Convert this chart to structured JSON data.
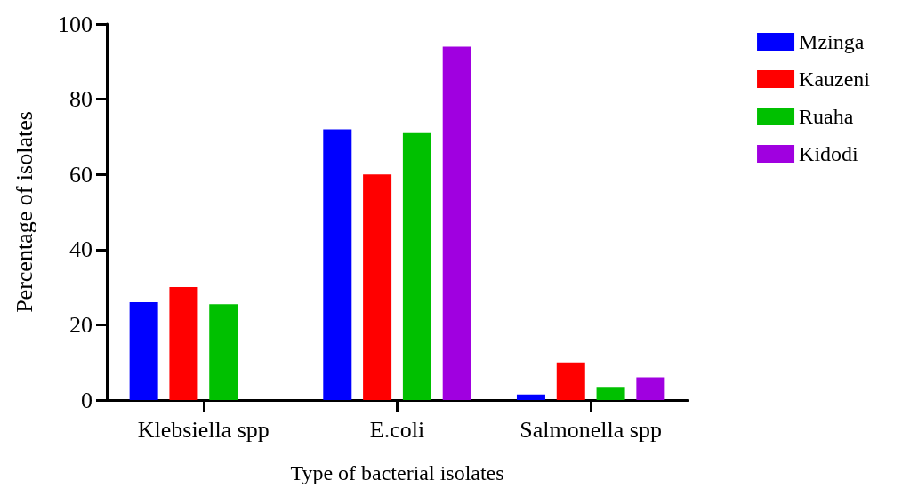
{
  "chart_data": {
    "type": "bar",
    "xlabel": "Type of bacterial isolates",
    "ylabel": "Percentage of isolates",
    "categories": [
      "Klebsiella spp",
      "E.coli",
      "Salmonella spp"
    ],
    "series": [
      {
        "name": "Mzinga",
        "color": "#0000ff",
        "values": [
          26,
          72,
          1.5
        ]
      },
      {
        "name": "Kauzeni",
        "color": "#ff0000",
        "values": [
          30,
          60,
          10
        ]
      },
      {
        "name": "Ruaha",
        "color": "#00c000",
        "values": [
          25.5,
          71,
          3.5
        ]
      },
      {
        "name": "Kidodi",
        "color": "#a000e0",
        "values": [
          0,
          94,
          6
        ]
      }
    ],
    "ylim": [
      0,
      100
    ],
    "yticks": [
      0,
      20,
      40,
      60,
      80,
      100
    ],
    "grid": false,
    "legend": "top right"
  }
}
